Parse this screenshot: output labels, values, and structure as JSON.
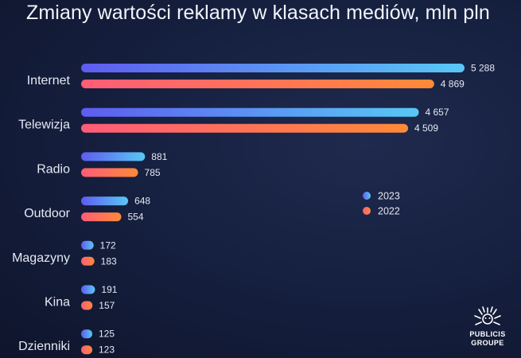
{
  "title": "Zmiany wartości reklamy w klasach mediów, mln pln",
  "logo": {
    "line1": "PUBLICIS",
    "line2": "GROUPE"
  },
  "colors": {
    "2023_start": "#5e5cf0",
    "2023_end": "#58c8f5",
    "2022_start": "#ff5c78",
    "2022_end": "#ff8a38"
  },
  "chart_data": {
    "type": "bar",
    "orientation": "horizontal",
    "title": "Zmiany wartości reklamy w klasach mediów, mln pln",
    "categories": [
      "Internet",
      "Telewizja",
      "Radio",
      "Outdoor",
      "Magazyny",
      "Kina",
      "Dzienniki"
    ],
    "series": [
      {
        "name": "2023",
        "values": [
          5288,
          4657,
          881,
          648,
          172,
          191,
          125
        ],
        "labels": [
          "5 288",
          "4 657",
          "881",
          "648",
          "172",
          "191",
          "125"
        ]
      },
      {
        "name": "2022",
        "values": [
          4869,
          4509,
          785,
          554,
          183,
          157,
          123
        ],
        "labels": [
          "4 869",
          "4 509",
          "785",
          "554",
          "183",
          "157",
          "123"
        ]
      }
    ],
    "legend": {
      "position": "right",
      "items": [
        "2023",
        "2022"
      ]
    },
    "grid": false
  }
}
